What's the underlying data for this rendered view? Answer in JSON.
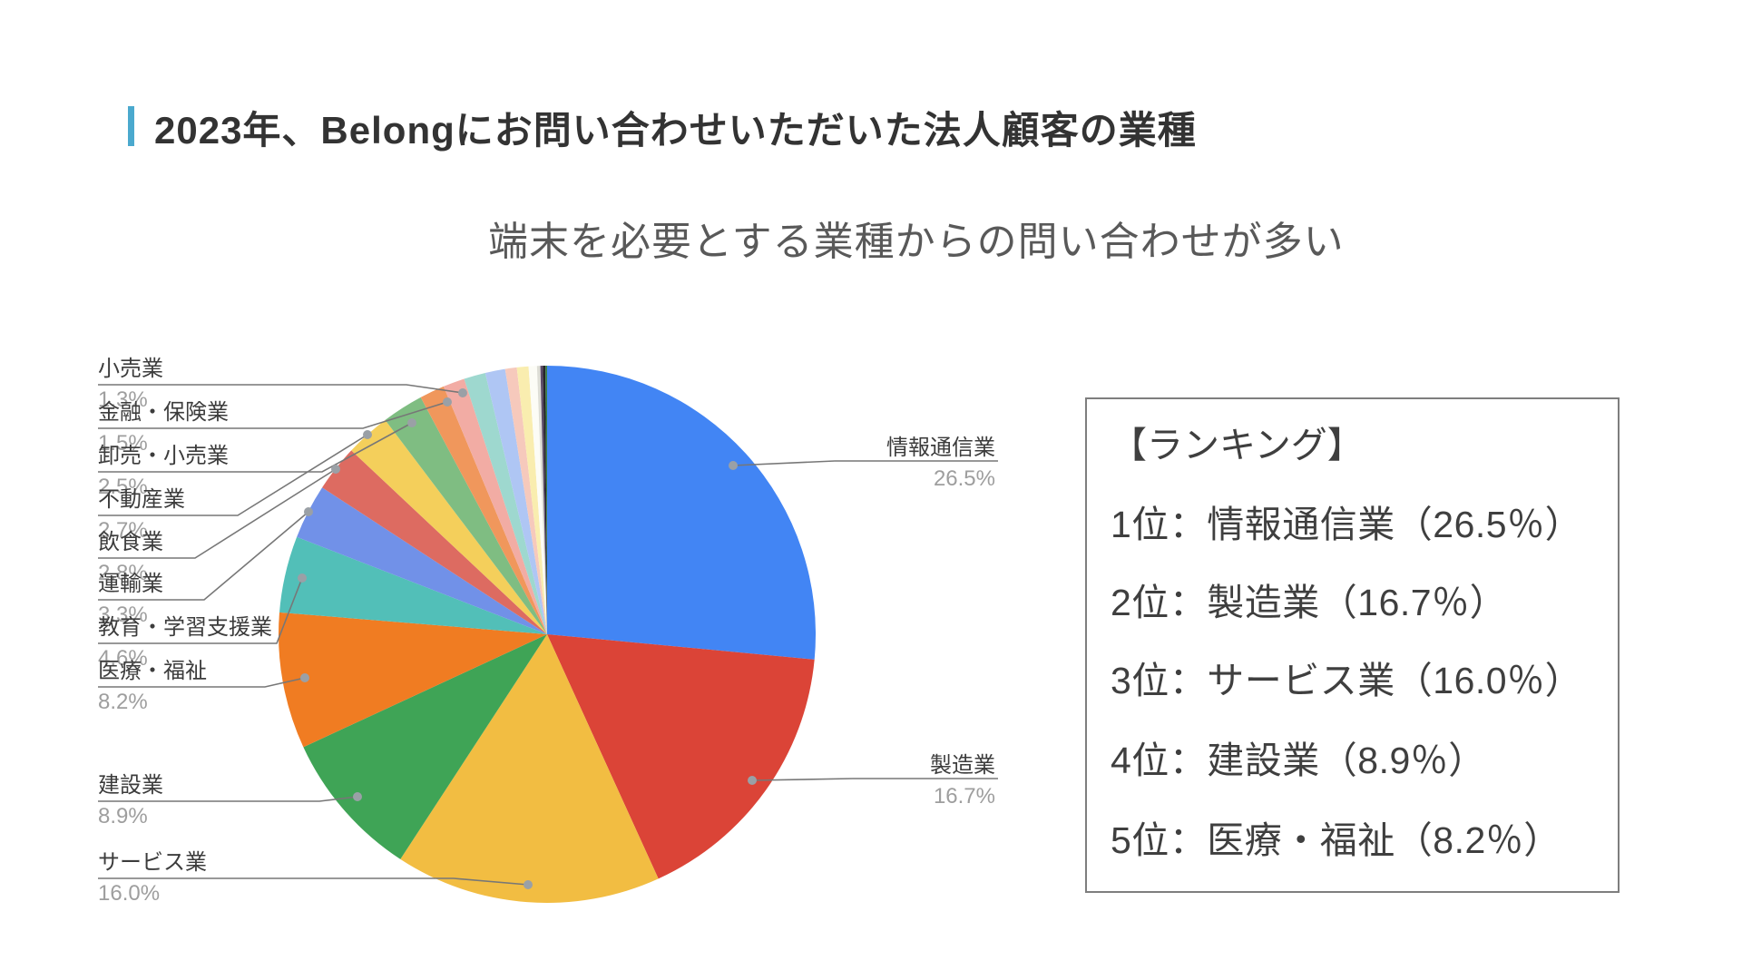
{
  "header": {
    "title": "2023年、Belongにお問い合わせいただいた法人顧客の業種",
    "subtitle": "端末を必要とする業種からの問い合わせが多い",
    "accent_color": "#4BA9CE"
  },
  "ranking_box": {
    "heading": "【ランキング】",
    "rows": [
      "1位：情報通信業（26.5％）",
      "2位：製造業（16.7％）",
      "3位：サービス業（16.0％）",
      "4位：建設業（8.9％）",
      "5位：医療・福祉（8.2％）"
    ]
  },
  "chart_data": {
    "type": "pie",
    "title": "2023年、Belongにお問い合わせいただいた法人顧客の業種",
    "subtitle": "端末を必要とする業種からの問い合わせが多い",
    "legend_position": "outside-callout-labels",
    "start_angle_deg": 0,
    "direction": "clockwise",
    "slices": [
      {
        "label": "情報通信業",
        "value": 26.5,
        "pct": "26.5%",
        "color": "#4285F4",
        "label_side": "right"
      },
      {
        "label": "製造業",
        "value": 16.7,
        "pct": "16.7%",
        "color": "#DB4437",
        "label_side": "right"
      },
      {
        "label": "サービス業",
        "value": 16.0,
        "pct": "16.0%",
        "color": "#F2BD42",
        "label_side": "left"
      },
      {
        "label": "建設業",
        "value": 8.9,
        "pct": "8.9%",
        "color": "#3FA456",
        "label_side": "left"
      },
      {
        "label": "医療・福祉",
        "value": 8.2,
        "pct": "8.2%",
        "color": "#F07C22",
        "label_side": "left"
      },
      {
        "label": "教育・学習支援業",
        "value": 4.6,
        "pct": "4.6%",
        "color": "#52BFB8",
        "label_side": "left"
      },
      {
        "label": "運輸業",
        "value": 3.3,
        "pct": "3.3%",
        "color": "#7191E8",
        "label_side": "left"
      },
      {
        "label": "飲食業",
        "value": 2.8,
        "pct": "2.8%",
        "color": "#DD6B61",
        "label_side": "left"
      },
      {
        "label": "不動産業",
        "value": 2.7,
        "pct": "2.7%",
        "color": "#F4CF5B",
        "label_side": "left"
      },
      {
        "label": "卸売・小売業",
        "value": 2.5,
        "pct": "2.5%",
        "color": "#7FBD82",
        "label_side": "left"
      },
      {
        "label": "金融・保険業",
        "value": 1.5,
        "pct": "1.5%",
        "color": "#F0975C",
        "label_side": "left"
      },
      {
        "label": "小売業",
        "value": 1.3,
        "pct": "1.3%",
        "color": "#F2ACA4",
        "label_side": "left"
      }
    ],
    "unlabeled_slices": [
      {
        "label": "",
        "value": 1.3,
        "color": "#9ED8CF"
      },
      {
        "label": "",
        "value": 1.2,
        "color": "#AFC6F4"
      },
      {
        "label": "",
        "value": 0.7,
        "color": "#F6C9BC"
      },
      {
        "label": "",
        "value": 0.7,
        "color": "#F9EDAF"
      },
      {
        "label": "",
        "value": 0.5,
        "color": "#FCFCF6"
      },
      {
        "label": "",
        "value": 0.2,
        "color": "#DDDDD5"
      },
      {
        "label": "",
        "value": 0.15,
        "color": "#5C4B68"
      },
      {
        "label": "",
        "value": 0.15,
        "color": "#26242A"
      },
      {
        "label": "",
        "value": 0.1,
        "color": "#3A7D44"
      }
    ],
    "callout_line_color": "#777777",
    "callout_dot_color": "#9AA0A6"
  }
}
